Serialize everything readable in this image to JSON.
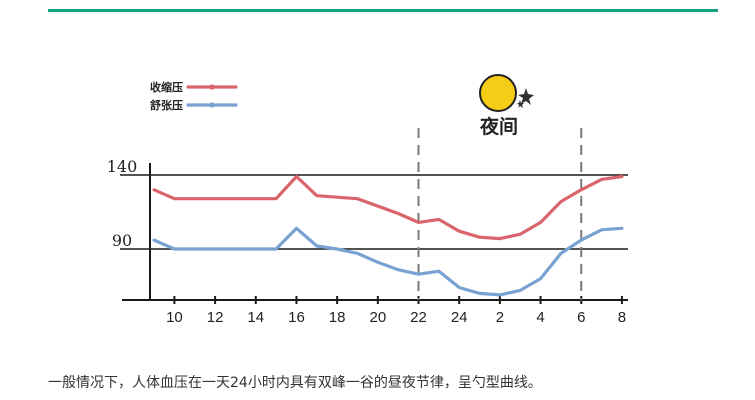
{
  "caption": "一般情况下，人体血压在一天24小时内具有双峰一谷的昼夜节律，呈勺型曲线。",
  "chart_data": {
    "type": "line",
    "x_ticks": [
      "10",
      "12",
      "14",
      "16",
      "18",
      "20",
      "22",
      "24",
      "2",
      "4",
      "6",
      "8"
    ],
    "y_ticks": [
      "140",
      "90"
    ],
    "night_label": "夜间",
    "night_bounds": [
      "22",
      "6"
    ],
    "series": [
      {
        "name": "收缩压",
        "color": "#d9646c",
        "hours": [
          9,
          10,
          11,
          12,
          13,
          14,
          15,
          16,
          17,
          18,
          19,
          20,
          21,
          22,
          23,
          24,
          25,
          26,
          27,
          28,
          29,
          30,
          31,
          32
        ],
        "values": [
          130,
          124,
          124,
          124,
          124,
          124,
          124,
          139,
          126,
          125,
          124,
          119,
          114,
          108,
          110,
          102,
          98,
          97,
          100,
          108,
          122,
          130,
          137,
          139
        ]
      },
      {
        "name": "舒张压",
        "color": "#78a2d2",
        "hours": [
          9,
          10,
          11,
          12,
          13,
          14,
          15,
          16,
          17,
          18,
          19,
          20,
          21,
          22,
          23,
          24,
          25,
          26,
          27,
          28,
          29,
          30,
          31,
          32
        ],
        "values": [
          96,
          90,
          90,
          90,
          90,
          90,
          90,
          104,
          92,
          90,
          87,
          81,
          76,
          73,
          75,
          64,
          60,
          59,
          62,
          70,
          87,
          96,
          103,
          104
        ]
      }
    ],
    "colors": {
      "axis": "#1a1a1a",
      "dashed": "#7a7a7a",
      "moon": "#f6cd16",
      "moon_outline": "#222222"
    }
  }
}
